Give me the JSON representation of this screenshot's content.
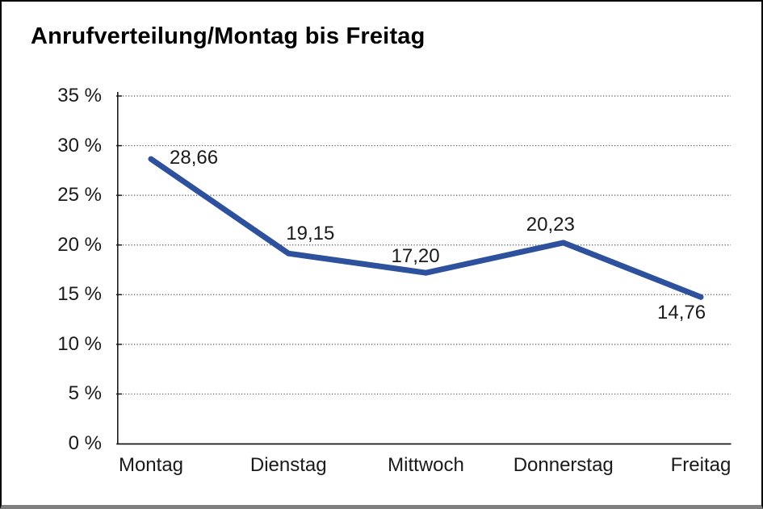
{
  "window": {
    "background": "#ffffff",
    "frame_border_color": "#000000",
    "frame_bottom_color": "#7f7f7f"
  },
  "chart_data": {
    "type": "line",
    "title": "Anrufverteilung/Montag bis Freitag",
    "categories": [
      "Montag",
      "Dienstag",
      "Mittwoch",
      "Donnerstag",
      "Freitag"
    ],
    "values": [
      28.66,
      19.15,
      17.2,
      20.23,
      14.76
    ],
    "value_labels": [
      "28,66",
      "19,15",
      "17,20",
      "20,23",
      "14,76"
    ],
    "series_name": "Anrufverteilung",
    "unit": "%",
    "xlabel": "",
    "ylabel": "",
    "ylim": [
      0,
      35
    ],
    "y_tick_step": 5,
    "y_ticks": [
      0,
      5,
      10,
      15,
      20,
      25,
      30,
      35
    ],
    "y_tick_labels": [
      "0 %",
      "5 %",
      "10 %",
      "15 %",
      "20 %",
      "25 %",
      "30 %",
      "35 %"
    ],
    "grid": "horizontal dotted",
    "legend": "none",
    "line_color": "#2E519E",
    "axis_color": "#1a1a1a",
    "grid_color": "#555555",
    "text_color": "#1a1a1a"
  }
}
